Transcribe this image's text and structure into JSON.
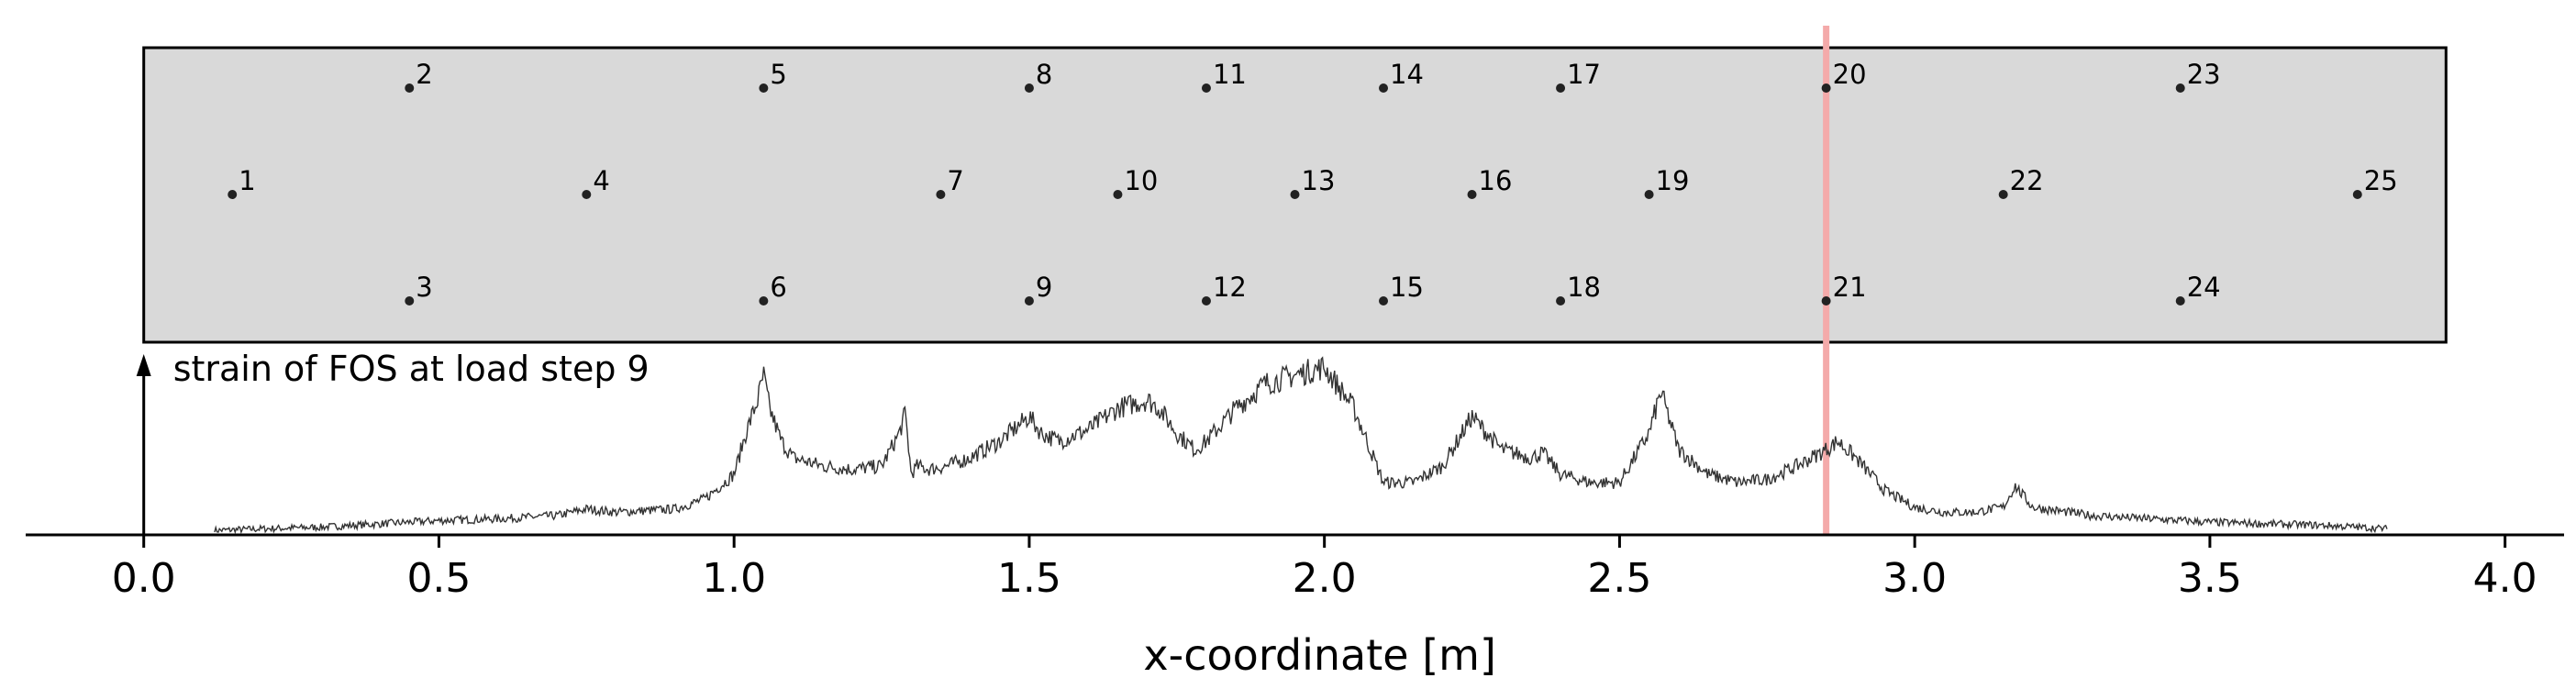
{
  "chart_data": {
    "type": "line",
    "xlabel": "x-coordinate [m]",
    "xlim": [
      -0.2,
      4.1
    ],
    "x_ticks": [
      "0.0",
      "0.5",
      "1.0",
      "1.5",
      "2.0",
      "2.5",
      "3.0",
      "3.5",
      "4.0"
    ],
    "x_tick_values": [
      0.0,
      0.5,
      1.0,
      1.5,
      2.0,
      2.5,
      3.0,
      3.5,
      4.0
    ],
    "beam": {
      "x_start": 0.0,
      "x_end": 3.9,
      "fill_color": "#d9d9d9"
    },
    "highlight_line": {
      "x": 2.85,
      "color": "#f4aaaa"
    },
    "strain_arrow_label": "strain of FOS at load step 9",
    "nodes": [
      {
        "label": "1",
        "x": 0.15,
        "row": "middle"
      },
      {
        "label": "2",
        "x": 0.45,
        "row": "top"
      },
      {
        "label": "3",
        "x": 0.45,
        "row": "bottom"
      },
      {
        "label": "4",
        "x": 0.75,
        "row": "middle"
      },
      {
        "label": "5",
        "x": 1.05,
        "row": "top"
      },
      {
        "label": "6",
        "x": 1.05,
        "row": "bottom"
      },
      {
        "label": "7",
        "x": 1.35,
        "row": "middle"
      },
      {
        "label": "8",
        "x": 1.5,
        "row": "top"
      },
      {
        "label": "9",
        "x": 1.5,
        "row": "bottom"
      },
      {
        "label": "10",
        "x": 1.65,
        "row": "middle"
      },
      {
        "label": "11",
        "x": 1.8,
        "row": "top"
      },
      {
        "label": "12",
        "x": 1.8,
        "row": "bottom"
      },
      {
        "label": "13",
        "x": 1.95,
        "row": "middle"
      },
      {
        "label": "14",
        "x": 2.1,
        "row": "top"
      },
      {
        "label": "15",
        "x": 2.1,
        "row": "bottom"
      },
      {
        "label": "16",
        "x": 2.25,
        "row": "middle"
      },
      {
        "label": "17",
        "x": 2.4,
        "row": "top"
      },
      {
        "label": "18",
        "x": 2.4,
        "row": "bottom"
      },
      {
        "label": "19",
        "x": 2.55,
        "row": "middle"
      },
      {
        "label": "20",
        "x": 2.85,
        "row": "top"
      },
      {
        "label": "21",
        "x": 2.85,
        "row": "bottom"
      },
      {
        "label": "22",
        "x": 3.15,
        "row": "middle"
      },
      {
        "label": "23",
        "x": 3.45,
        "row": "top"
      },
      {
        "label": "24",
        "x": 3.45,
        "row": "bottom"
      },
      {
        "label": "25",
        "x": 3.75,
        "row": "middle"
      }
    ],
    "series": [
      {
        "color": "#333333",
        "x": [
          0.12,
          0.2,
          0.3,
          0.4,
          0.5,
          0.6,
          0.7,
          0.75,
          0.8,
          0.9,
          0.95,
          1.0,
          1.02,
          1.04,
          1.05,
          1.06,
          1.08,
          1.1,
          1.15,
          1.2,
          1.25,
          1.28,
          1.29,
          1.3,
          1.31,
          1.33,
          1.36,
          1.4,
          1.45,
          1.5,
          1.52,
          1.55,
          1.6,
          1.65,
          1.7,
          1.72,
          1.75,
          1.78,
          1.8,
          1.85,
          1.9,
          1.95,
          1.98,
          2.0,
          2.02,
          2.05,
          2.1,
          2.15,
          2.2,
          2.25,
          2.3,
          2.35,
          2.37,
          2.4,
          2.45,
          2.5,
          2.55,
          2.57,
          2.6,
          2.65,
          2.7,
          2.75,
          2.8,
          2.85,
          2.87,
          2.9,
          2.95,
          3.0,
          3.05,
          3.1,
          3.15,
          3.17,
          3.2,
          3.3,
          3.4,
          3.5,
          3.6,
          3.7,
          3.8
        ],
        "y": [
          0.01,
          0.02,
          0.03,
          0.05,
          0.07,
          0.08,
          0.1,
          0.14,
          0.12,
          0.14,
          0.2,
          0.35,
          0.6,
          0.8,
          0.95,
          0.75,
          0.55,
          0.45,
          0.4,
          0.38,
          0.4,
          0.6,
          0.72,
          0.35,
          0.4,
          0.38,
          0.4,
          0.45,
          0.55,
          0.7,
          0.6,
          0.55,
          0.62,
          0.75,
          0.8,
          0.75,
          0.6,
          0.5,
          0.55,
          0.75,
          0.9,
          0.95,
          0.98,
          1.0,
          0.9,
          0.75,
          0.3,
          0.3,
          0.4,
          0.7,
          0.5,
          0.45,
          0.48,
          0.35,
          0.3,
          0.3,
          0.6,
          0.85,
          0.5,
          0.35,
          0.3,
          0.32,
          0.4,
          0.5,
          0.55,
          0.45,
          0.25,
          0.15,
          0.12,
          0.12,
          0.15,
          0.28,
          0.15,
          0.1,
          0.08,
          0.06,
          0.05,
          0.04,
          0.02
        ]
      }
    ]
  }
}
